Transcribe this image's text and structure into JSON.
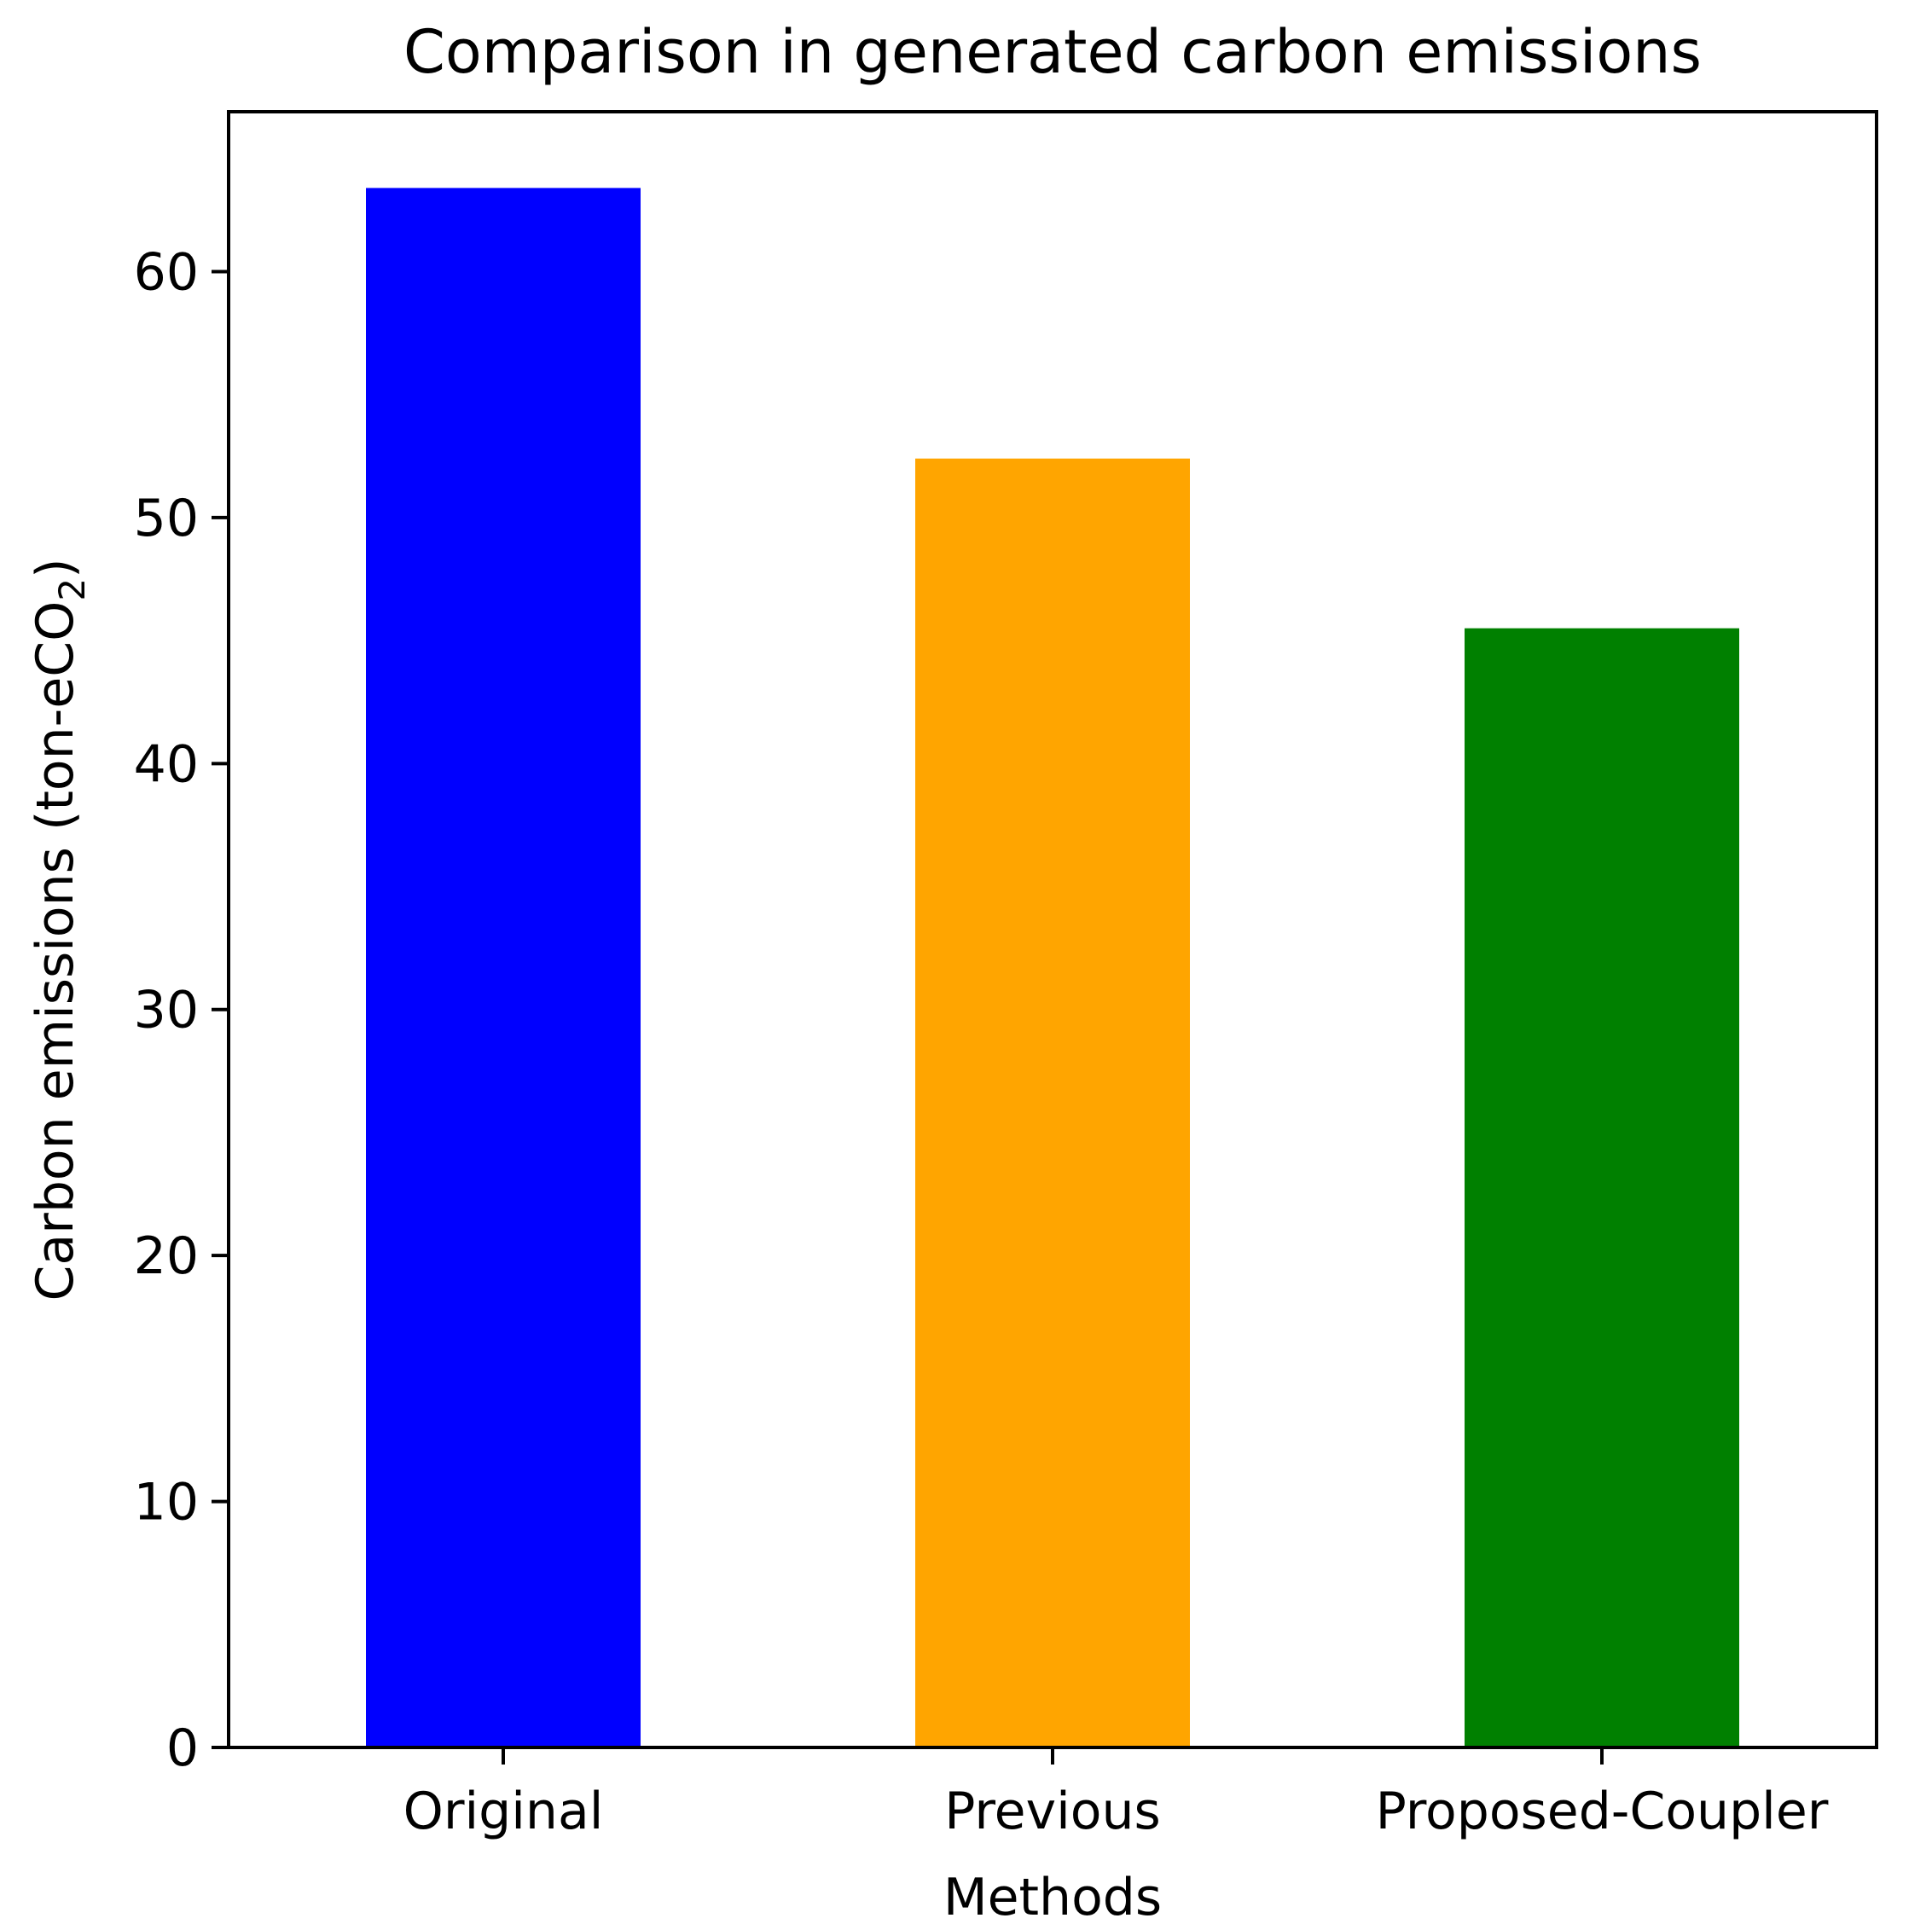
{
  "chart_data": {
    "type": "bar",
    "title": "Comparison in generated carbon emissions",
    "xlabel": "Methods",
    "ylabel": {
      "prefix": "Carbon emissions (ton-eCO",
      "subscript": "2",
      "suffix": ")"
    },
    "categories": [
      "Original",
      "Previous",
      "Proposed-Coupler"
    ],
    "values": [
      63.4,
      52.4,
      45.5
    ],
    "colors": [
      "#0000ff",
      "#ffa500",
      "#008000"
    ],
    "ylim": [
      0,
      66.5
    ],
    "yticks": [
      0,
      10,
      20,
      30,
      40,
      50,
      60
    ],
    "grid": false,
    "legend": "none"
  }
}
